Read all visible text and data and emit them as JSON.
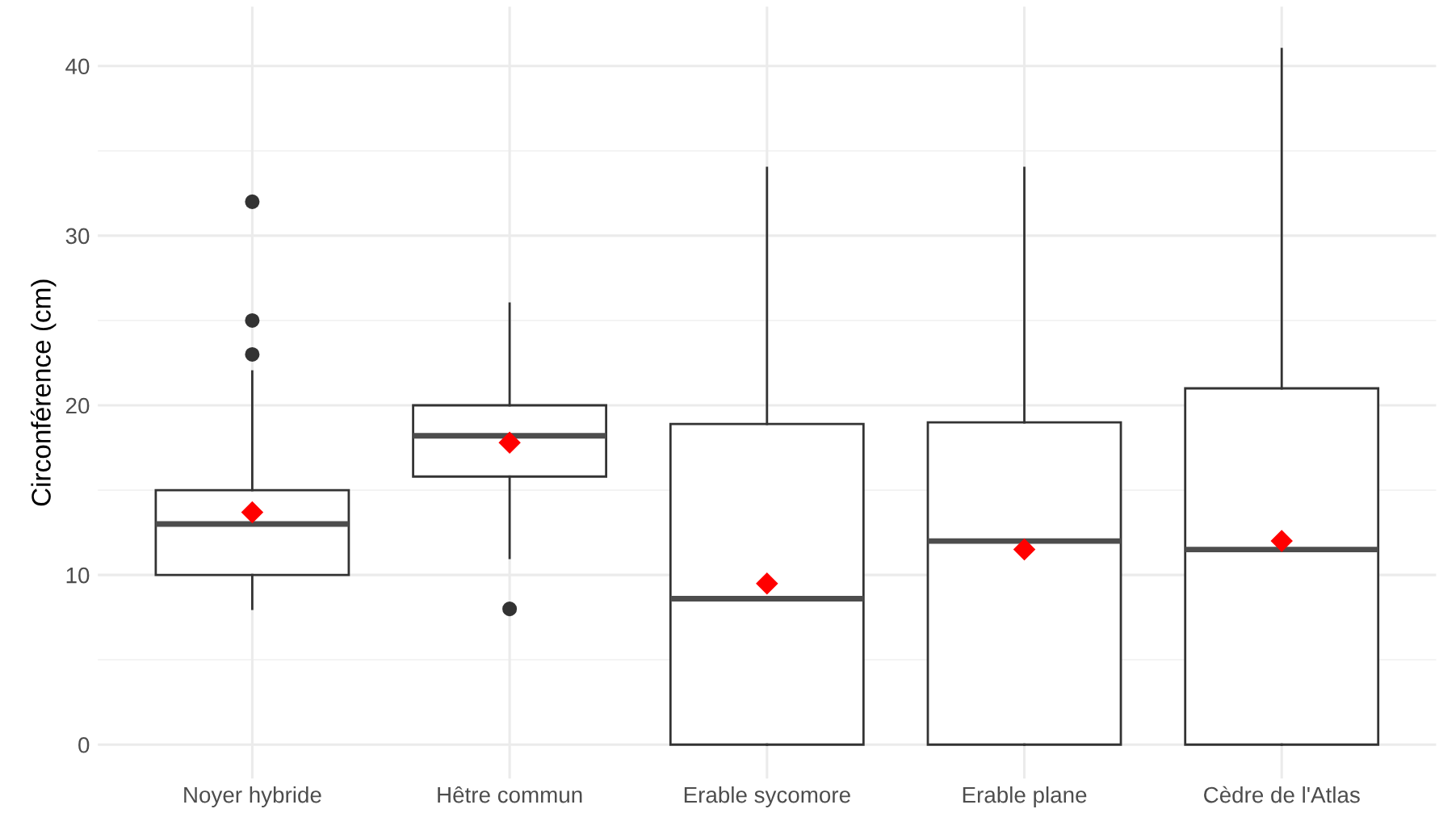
{
  "chart_data": {
    "type": "box",
    "ylabel": "Circonférence (cm)",
    "categories": [
      "Noyer hybride",
      "Hêtre commun",
      "Erable sycomore",
      "Erable plane",
      "Cèdre de l'Atlas"
    ],
    "boxes": [
      {
        "low": 8,
        "q1": 10,
        "median": 13,
        "q3": 15,
        "high": 22,
        "mean": 13.7,
        "outliers": [
          23,
          25,
          32
        ]
      },
      {
        "low": 11,
        "q1": 15.8,
        "median": 18.2,
        "q3": 20,
        "high": 26,
        "mean": 17.8,
        "outliers": [
          8
        ]
      },
      {
        "low": 0,
        "q1": 0,
        "median": 8.6,
        "q3": 18.9,
        "high": 34,
        "mean": 9.5
      },
      {
        "low": 0,
        "q1": 0,
        "median": 12,
        "q3": 19,
        "high": 34,
        "mean": 11.5
      },
      {
        "low": 0,
        "q1": 0,
        "median": 11.5,
        "q3": 21,
        "high": 41,
        "mean": 12
      }
    ],
    "color": "#ffffff",
    "marker": "diamond",
    "ylim": [
      -2,
      43.5
    ],
    "yticks": [
      0,
      10,
      20,
      30,
      40
    ],
    "grid": true
  }
}
